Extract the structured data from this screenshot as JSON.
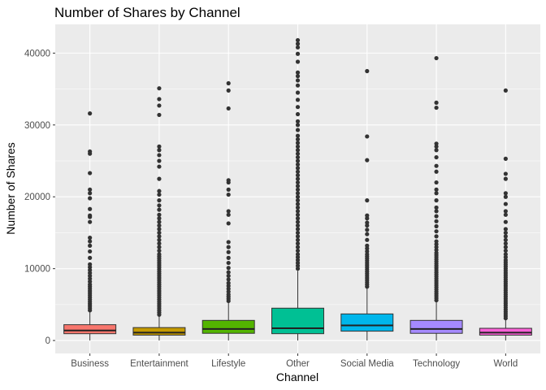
{
  "chart_data": {
    "type": "boxplot",
    "title": "Number of Shares by Channel",
    "xlabel": "Channel",
    "ylabel": "Number of Shares",
    "ylim": [
      -1800,
      44000
    ],
    "yticks": [
      0,
      10000,
      20000,
      30000,
      40000
    ],
    "ytick_labels": [
      "0",
      "10000",
      "20000",
      "30000",
      "40000"
    ],
    "grid": true,
    "legend": "none",
    "categories": [
      "Business",
      "Entertainment",
      "Lifestyle",
      "Other",
      "Social Media",
      "Technology",
      "World"
    ],
    "boxes": [
      {
        "category": "Business",
        "color": "#F8766D",
        "whisker_low": 0,
        "q1": 950,
        "median": 1400,
        "q3": 2200,
        "whisker_high": 4000,
        "outliers": [
          4200,
          4500,
          4800,
          5100,
          5400,
          5700,
          6000,
          6300,
          6600,
          6900,
          7200,
          7500,
          7800,
          8200,
          8600,
          9000,
          9400,
          9800,
          10200,
          10600,
          11500,
          12400,
          13200,
          13800,
          14300,
          16500,
          17200,
          17400,
          18300,
          19800,
          20500,
          21000,
          23300,
          26000,
          26300,
          31600
        ]
      },
      {
        "category": "Entertainment",
        "color": "#C49A00",
        "whisker_low": 0,
        "q1": 750,
        "median": 1100,
        "q3": 1800,
        "whisker_high": 3400,
        "outliers": [
          3600,
          3900,
          4200,
          4500,
          4800,
          5100,
          5400,
          5700,
          6000,
          6300,
          6600,
          6900,
          7200,
          7500,
          7800,
          8100,
          8400,
          8700,
          9000,
          9300,
          9600,
          9900,
          10200,
          10500,
          10800,
          11100,
          11400,
          11700,
          12000,
          12500,
          13000,
          13500,
          14000,
          14500,
          15000,
          15500,
          16000,
          16500,
          17000,
          17500,
          18200,
          18800,
          19500,
          20300,
          20800,
          22500,
          24200,
          25000,
          25800,
          26500,
          27000,
          31400,
          32700,
          33600,
          35100
        ]
      },
      {
        "category": "Lifestyle",
        "color": "#53B400",
        "whisker_low": 0,
        "q1": 1000,
        "median": 1600,
        "q3": 2800,
        "whisker_high": 5300,
        "outliers": [
          5500,
          5800,
          6100,
          6400,
          6800,
          7200,
          7600,
          8000,
          8500,
          9000,
          9500,
          10100,
          10800,
          11500,
          12300,
          13000,
          13700,
          16300,
          17500,
          18000,
          20300,
          21000,
          22000,
          22300,
          32300,
          34800,
          35800
        ]
      },
      {
        "category": "Other",
        "color": "#00C094",
        "whisker_low": 0,
        "q1": 950,
        "median": 1700,
        "q3": 4500,
        "whisker_high": 9700,
        "outliers": [
          10000,
          10400,
          10800,
          11200,
          11600,
          12000,
          12500,
          13000,
          13500,
          14000,
          14500,
          15000,
          15500,
          16000,
          16500,
          17000,
          17500,
          18000,
          18500,
          19000,
          19500,
          20000,
          20500,
          21000,
          21500,
          22000,
          22500,
          23000,
          23500,
          24000,
          24500,
          25000,
          25500,
          26000,
          26500,
          27000,
          27500,
          28000,
          28500,
          29300,
          30000,
          30500,
          31500,
          32500,
          33500,
          34500,
          35500,
          36200,
          36800,
          37300,
          38800,
          39900,
          40800,
          41300,
          41800
        ]
      },
      {
        "category": "Social Media",
        "color": "#00B6EB",
        "whisker_low": 0,
        "q1": 1300,
        "median": 2100,
        "q3": 3700,
        "whisker_high": 7300,
        "outliers": [
          7500,
          7800,
          8100,
          8400,
          8700,
          9000,
          9300,
          9600,
          9900,
          10200,
          10500,
          10800,
          11100,
          11400,
          11700,
          12000,
          12400,
          12800,
          13200,
          14000,
          14800,
          15400,
          16000,
          16400,
          17000,
          17400,
          19500,
          25100,
          28400,
          37500
        ]
      },
      {
        "category": "Technology",
        "color": "#A58AFF",
        "whisker_low": 0,
        "q1": 1000,
        "median": 1600,
        "q3": 2800,
        "whisker_high": 5400,
        "outliers": [
          5600,
          5900,
          6200,
          6500,
          6800,
          7100,
          7400,
          7700,
          8000,
          8300,
          8600,
          8900,
          9200,
          9500,
          9800,
          10100,
          10400,
          10700,
          11000,
          11300,
          11600,
          11900,
          12200,
          12600,
          13000,
          13400,
          13800,
          14500,
          15200,
          15900,
          16600,
          17300,
          18000,
          18500,
          19500,
          20500,
          21000,
          22000,
          23500,
          24300,
          25500,
          26500,
          27000,
          27400,
          32400,
          33100,
          39300
        ]
      },
      {
        "category": "World",
        "color": "#FB61D7",
        "whisker_low": 0,
        "q1": 750,
        "median": 1100,
        "q3": 1700,
        "whisker_high": 2900,
        "outliers": [
          3100,
          3400,
          3700,
          4000,
          4300,
          4600,
          4900,
          5200,
          5500,
          5800,
          6100,
          6400,
          6700,
          7000,
          7300,
          7600,
          7900,
          8200,
          8500,
          8800,
          9100,
          9400,
          9700,
          10000,
          10300,
          10600,
          10900,
          11200,
          11600,
          12000,
          12500,
          13000,
          13500,
          14000,
          14500,
          15000,
          15500,
          16500,
          17500,
          18000,
          19000,
          20000,
          20500,
          22500,
          23200,
          25300,
          34800
        ]
      }
    ]
  }
}
